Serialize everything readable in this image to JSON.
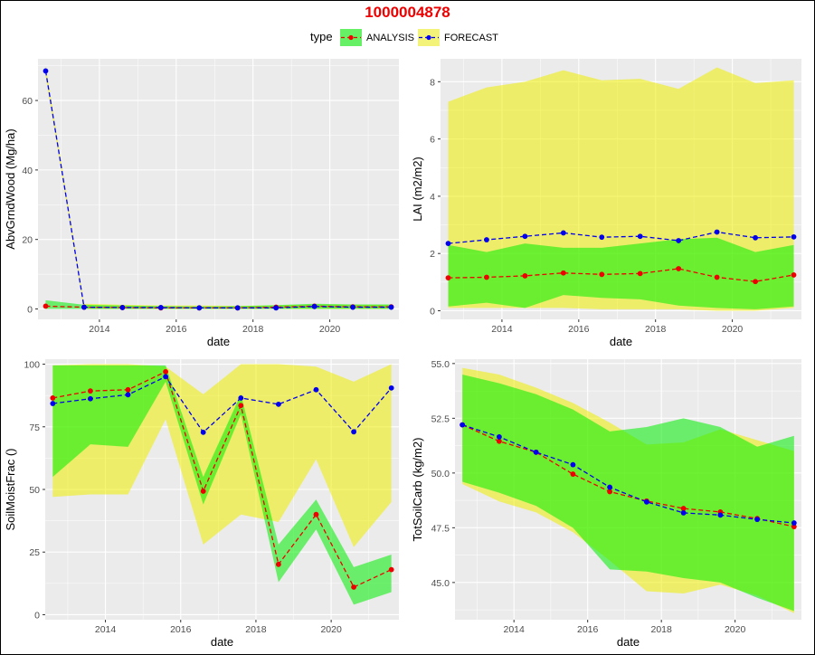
{
  "title": "1000004878",
  "legend": {
    "title": "type",
    "entries": [
      {
        "label": "ANALYSIS",
        "line_color": "#ee0000",
        "fill_color": "#00ee00"
      },
      {
        "label": "FORECAST",
        "line_color": "#0000ee",
        "fill_color": "#eeee00"
      }
    ],
    "position": "top"
  },
  "colors": {
    "panel_bg": "#ebebeb",
    "grid": "#ffffff",
    "analysis_line": "#ee0000",
    "forecast_line": "#0000ee",
    "analysis_band": "#00ee00",
    "forecast_band": "#eeee00",
    "title": "#ee0000"
  },
  "chart_data": [
    {
      "type": "line",
      "ylabel": "AbvGrndWood (Mg/ha)",
      "xlabel": "date",
      "xlim": [
        2012.4,
        2021.8
      ],
      "ylim": [
        -3,
        72
      ],
      "x_ticks": [
        2014,
        2016,
        2018,
        2020
      ],
      "y_ticks": [
        0,
        20,
        40,
        60
      ],
      "y_tick_labels": [
        "0",
        "20",
        "40",
        "60"
      ],
      "x": [
        2012.6,
        2013.6,
        2014.6,
        2015.6,
        2016.6,
        2017.6,
        2018.6,
        2019.6,
        2020.6,
        2021.6
      ],
      "series": [
        {
          "name": "ANALYSIS",
          "values": [
            0.8,
            0.5,
            0.4,
            0.3,
            0.3,
            0.3,
            0.5,
            0.8,
            0.6,
            0.6
          ],
          "lower": [
            0.0,
            0.0,
            0.0,
            0.0,
            0.0,
            0.0,
            0.0,
            0.0,
            0.0,
            0.0
          ],
          "upper": [
            2.5,
            1.2,
            1.0,
            0.8,
            0.7,
            0.8,
            1.1,
            1.5,
            1.3,
            1.3
          ]
        },
        {
          "name": "FORECAST",
          "values": [
            68.5,
            0.5,
            0.4,
            0.4,
            0.3,
            0.3,
            0.3,
            0.7,
            0.5,
            0.5
          ],
          "lower": [
            67.0,
            0.0,
            0.0,
            0.0,
            0.0,
            0.0,
            0.0,
            0.0,
            0.0,
            0.0
          ],
          "upper": [
            70.0,
            1.5,
            1.2,
            1.0,
            1.0,
            0.9,
            1.0,
            1.3,
            1.2,
            1.2
          ]
        }
      ]
    },
    {
      "type": "line",
      "ylabel": "LAI (m2/m2)",
      "xlabel": "date",
      "xlim": [
        2012.4,
        2021.8
      ],
      "ylim": [
        -0.3,
        8.8
      ],
      "x_ticks": [
        2014,
        2016,
        2018,
        2020
      ],
      "y_ticks": [
        0,
        2,
        4,
        6,
        8
      ],
      "y_tick_labels": [
        "0",
        "2",
        "4",
        "6",
        "8"
      ],
      "x": [
        2012.6,
        2013.6,
        2014.6,
        2015.6,
        2016.6,
        2017.6,
        2018.6,
        2019.6,
        2020.6,
        2021.6
      ],
      "series": [
        {
          "name": "ANALYSIS",
          "values": [
            1.15,
            1.17,
            1.22,
            1.32,
            1.27,
            1.3,
            1.47,
            1.17,
            1.02,
            1.25
          ],
          "lower": [
            0.15,
            0.28,
            0.1,
            0.55,
            0.45,
            0.4,
            0.18,
            0.1,
            0.05,
            0.15
          ],
          "upper": [
            2.3,
            2.05,
            2.35,
            2.2,
            2.2,
            2.35,
            2.5,
            2.55,
            2.05,
            2.3
          ]
        },
        {
          "name": "FORECAST",
          "values": [
            2.35,
            2.48,
            2.6,
            2.72,
            2.57,
            2.6,
            2.45,
            2.75,
            2.55,
            2.58
          ],
          "lower": [
            0.1,
            0.1,
            0.1,
            0.1,
            0.05,
            0.05,
            0.05,
            0.0,
            0.0,
            0.1
          ],
          "upper": [
            7.3,
            7.8,
            8.0,
            8.4,
            8.05,
            8.1,
            7.75,
            8.5,
            7.95,
            8.05
          ]
        }
      ]
    },
    {
      "type": "line",
      "ylabel": "SoilMoistFrac ()",
      "xlabel": "date",
      "xlim": [
        2012.4,
        2021.8
      ],
      "ylim": [
        -2,
        102
      ],
      "x_ticks": [
        2014,
        2016,
        2018,
        2020
      ],
      "y_ticks": [
        0,
        25,
        50,
        75,
        100
      ],
      "y_tick_labels": [
        "0",
        "25",
        "50",
        "75",
        "100"
      ],
      "x": [
        2012.6,
        2013.6,
        2014.6,
        2015.6,
        2016.6,
        2017.6,
        2018.6,
        2019.6,
        2020.6,
        2021.6
      ],
      "series": [
        {
          "name": "ANALYSIS",
          "values": [
            86.5,
            89.3,
            89.8,
            97,
            49.3,
            83.5,
            20.1,
            40,
            11,
            18
          ],
          "lower": [
            55,
            68,
            67,
            93,
            44,
            80,
            13,
            34,
            4,
            9
          ],
          "upper": [
            99.5,
            99.5,
            99.5,
            99.5,
            55,
            88,
            28,
            46,
            19,
            24
          ]
        },
        {
          "name": "FORECAST",
          "values": [
            84.3,
            86.2,
            87.8,
            95,
            72.8,
            86.5,
            84,
            89.8,
            73,
            90.5
          ],
          "lower": [
            47,
            48,
            48,
            78,
            28,
            40,
            37,
            62,
            27,
            45
          ],
          "upper": [
            99.5,
            100,
            100,
            99,
            88,
            100,
            100,
            99,
            93,
            100
          ]
        }
      ]
    },
    {
      "type": "line",
      "ylabel": "TotSoilCarb (kg/m2)",
      "xlabel": "date",
      "xlim": [
        2012.4,
        2021.8
      ],
      "ylim": [
        43.3,
        55.2
      ],
      "x_ticks": [
        2014,
        2016,
        2018,
        2020
      ],
      "y_ticks": [
        45.0,
        47.5,
        50.0,
        52.5,
        55.0
      ],
      "y_tick_labels": [
        "45.0",
        "47.5",
        "50.0",
        "52.5",
        "55.0"
      ],
      "x": [
        2012.6,
        2013.6,
        2014.6,
        2015.6,
        2016.6,
        2017.6,
        2018.6,
        2019.6,
        2020.6,
        2021.6
      ],
      "series": [
        {
          "name": "ANALYSIS",
          "values": [
            52.2,
            51.45,
            50.95,
            49.95,
            49.15,
            48.72,
            48.38,
            48.22,
            47.92,
            47.55
          ],
          "lower": [
            49.6,
            49.1,
            48.5,
            47.5,
            45.6,
            45.5,
            45.2,
            45.0,
            44.3,
            43.7
          ],
          "upper": [
            54.5,
            54.1,
            53.6,
            52.9,
            51.9,
            52.1,
            52.5,
            52.1,
            51.2,
            51.7
          ]
        },
        {
          "name": "FORECAST",
          "values": [
            52.2,
            51.65,
            50.95,
            50.38,
            49.35,
            48.68,
            48.18,
            48.08,
            47.88,
            47.72
          ],
          "lower": [
            49.5,
            48.7,
            48.2,
            47.3,
            46.0,
            44.6,
            44.5,
            44.9,
            44.4,
            43.6
          ],
          "upper": [
            54.8,
            54.5,
            53.9,
            53.2,
            52.3,
            51.3,
            51.4,
            52.0,
            51.5,
            51.0
          ]
        }
      ]
    }
  ]
}
